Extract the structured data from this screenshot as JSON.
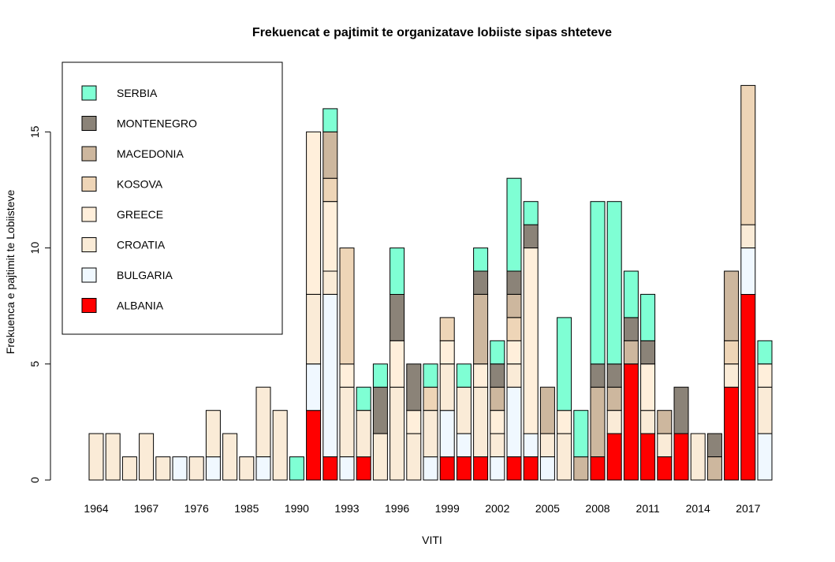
{
  "chart_data": {
    "type": "bar",
    "stacked": true,
    "title": "Frekuencat e pajtimit te organizatave lobiiste sipas shteteve",
    "xlabel": "VITI",
    "ylabel": "Frekuenca e pajtimit te Lobiisteve",
    "ylim": [
      0,
      18
    ],
    "yticks": [
      0,
      5,
      10,
      15
    ],
    "categories": [
      "1964",
      "1965",
      "1966",
      "1967",
      "1968",
      "1975",
      "1976",
      "1977",
      "1979",
      "1985",
      "1987",
      "1989",
      "1990",
      "1991",
      "1992",
      "1993",
      "1994",
      "1995",
      "1996",
      "1997",
      "1998",
      "1999",
      "2000",
      "2001",
      "2002",
      "2003",
      "2004",
      "2005",
      "2006",
      "2007",
      "2008",
      "2009",
      "2010",
      "2011",
      "2012",
      "2013",
      "2014",
      "2015",
      "2016",
      "2017",
      "2018"
    ],
    "x_tick_labels": [
      "1964",
      "1967",
      "1976",
      "1985",
      "1990",
      "1993",
      "1996",
      "1999",
      "2002",
      "2005",
      "2008",
      "2011",
      "2014",
      "2017"
    ],
    "x_tick_indices": [
      0,
      3,
      6,
      9,
      12,
      15,
      18,
      21,
      24,
      27,
      30,
      33,
      36,
      39
    ],
    "series": [
      {
        "name": "ALBANIA",
        "color": "#FF0000",
        "values": [
          0,
          0,
          0,
          0,
          0,
          0,
          0,
          0,
          0,
          0,
          0,
          0,
          0,
          3,
          1,
          0,
          1,
          0,
          0,
          0,
          0,
          1,
          1,
          1,
          0,
          1,
          1,
          0,
          0,
          0,
          1,
          2,
          5,
          2,
          1,
          2,
          0,
          0,
          4,
          8,
          0
        ]
      },
      {
        "name": "BULGARIA",
        "color": "#F0F8FF",
        "values": [
          0,
          0,
          0,
          0,
          0,
          1,
          0,
          1,
          0,
          0,
          1,
          0,
          0,
          2,
          7,
          1,
          0,
          0,
          0,
          0,
          1,
          2,
          1,
          0,
          1,
          3,
          1,
          1,
          0,
          0,
          0,
          0,
          0,
          0,
          0,
          0,
          0,
          0,
          0,
          2,
          2
        ]
      },
      {
        "name": "CROATIA",
        "color": "#FAEBD7",
        "values": [
          2,
          2,
          1,
          2,
          1,
          0,
          1,
          2,
          2,
          1,
          3,
          3,
          0,
          3,
          1,
          3,
          2,
          2,
          4,
          2,
          2,
          2,
          2,
          3,
          1,
          1,
          0,
          1,
          2,
          0,
          0,
          1,
          0,
          1,
          1,
          0,
          2,
          0,
          1,
          1,
          2
        ]
      },
      {
        "name": "GREECE",
        "color": "#FFEFDB",
        "values": [
          0,
          0,
          0,
          0,
          0,
          0,
          0,
          0,
          0,
          0,
          0,
          0,
          0,
          7,
          3,
          1,
          0,
          0,
          2,
          1,
          0,
          1,
          0,
          1,
          1,
          1,
          8,
          0,
          1,
          0,
          0,
          0,
          0,
          2,
          0,
          0,
          0,
          0,
          0,
          0,
          1
        ]
      },
      {
        "name": "KOSOVA",
        "color": "#EED5B7",
        "values": [
          0,
          0,
          0,
          0,
          0,
          0,
          0,
          0,
          0,
          0,
          0,
          0,
          0,
          0,
          1,
          5,
          0,
          0,
          0,
          0,
          1,
          1,
          0,
          0,
          0,
          1,
          0,
          0,
          0,
          0,
          0,
          0,
          0,
          0,
          0,
          0,
          0,
          0,
          1,
          6,
          0
        ]
      },
      {
        "name": "MACEDONIA",
        "color": "#CDB79E",
        "values": [
          0,
          0,
          0,
          0,
          0,
          0,
          0,
          0,
          0,
          0,
          0,
          0,
          0,
          0,
          2,
          0,
          0,
          0,
          0,
          0,
          0,
          0,
          0,
          3,
          1,
          1,
          0,
          2,
          0,
          1,
          3,
          1,
          1,
          0,
          1,
          0,
          0,
          1,
          3,
          0,
          0
        ]
      },
      {
        "name": "MONTENEGRO",
        "color": "#8B8378",
        "values": [
          0,
          0,
          0,
          0,
          0,
          0,
          0,
          0,
          0,
          0,
          0,
          0,
          0,
          0,
          0,
          0,
          0,
          2,
          2,
          2,
          0,
          0,
          0,
          1,
          1,
          1,
          1,
          0,
          0,
          0,
          1,
          1,
          1,
          1,
          0,
          2,
          0,
          1,
          0,
          0,
          0
        ]
      },
      {
        "name": "SERBIA",
        "color": "#7FFFD4",
        "values": [
          0,
          0,
          0,
          0,
          0,
          0,
          0,
          0,
          0,
          0,
          0,
          0,
          1,
          0,
          1,
          0,
          1,
          1,
          2,
          0,
          1,
          0,
          1,
          1,
          1,
          4,
          1,
          0,
          4,
          2,
          7,
          7,
          2,
          2,
          0,
          0,
          0,
          0,
          0,
          0,
          1
        ]
      }
    ],
    "legend": {
      "placement": "top-left",
      "entries": [
        "SERBIA",
        "MONTENEGRO",
        "MACEDONIA",
        "KOSOVA",
        "GREECE",
        "CROATIA",
        "BULGARIA",
        "ALBANIA"
      ]
    }
  }
}
